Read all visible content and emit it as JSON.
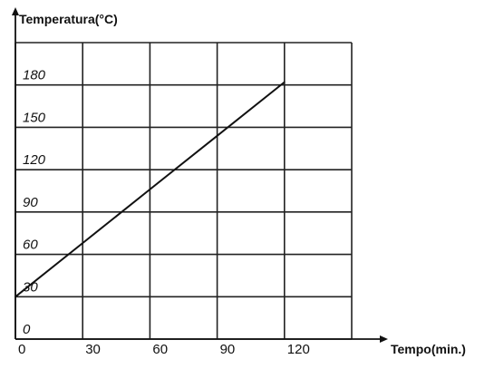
{
  "chart_data": {
    "type": "line",
    "title": "",
    "xlabel": "Tempo(min.)",
    "ylabel": "Temperatura(°C)",
    "xlim": [
      0,
      150
    ],
    "ylim": [
      0,
      210
    ],
    "grid": true,
    "x_ticks": [
      0,
      30,
      60,
      90,
      120
    ],
    "x_tick_labels": [
      "0",
      "30",
      "60",
      "90",
      "120"
    ],
    "y_ticks": [
      0,
      30,
      60,
      90,
      120,
      150,
      180
    ],
    "y_tick_labels": [
      "0",
      "30",
      "60",
      "90",
      "120",
      "150",
      "180"
    ],
    "series": [
      {
        "x": [
          0,
          30,
          60,
          90,
          120
        ],
        "y": [
          30,
          68,
          106,
          144,
          182
        ]
      }
    ],
    "colors": {
      "line": "#111111",
      "grid": "#222222",
      "axis": "#111111"
    }
  }
}
